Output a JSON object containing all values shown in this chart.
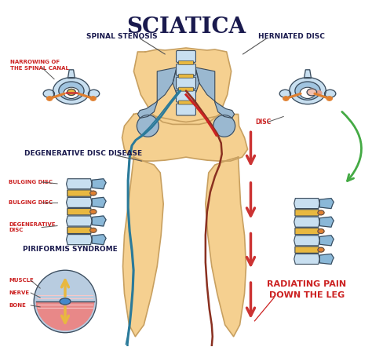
{
  "title": "SCIATICA",
  "title_color": "#1a1a4e",
  "title_fontsize": 20,
  "bg_color": "#ffffff",
  "labels": {
    "spinal_stenosis": "SPINAL STENOSIS",
    "narrowing": "NARROWING OF\nTHE SPINAL CANAL",
    "herniated_disc": "HERNIATED DISC",
    "disc": "DISC",
    "deg_disc": "DEGENERATIVE DISC DISEASE",
    "bulging1": "BULGING DISC",
    "bulging2": "BULGING DISC",
    "deg": "DEGENERATIVE\nDISC",
    "piriformis": "PIRIFORMIS SYNDROME",
    "muscle": "MUSCLE",
    "nerve": "NERVE",
    "bone": "BONE",
    "radiating": "RADIATING PAIN\nDOWN THE LEG"
  },
  "label_color_dark": "#1a1a4e",
  "label_color_red": "#cc2222",
  "body_fill": "#f5d090",
  "body_outline": "#c8a060",
  "spine_blue_light": "#c8dff0",
  "spine_blue": "#8ab8d8",
  "spine_dark": "#3a4a5a",
  "disc_yellow": "#e8b840",
  "disc_orange": "#e08030",
  "disc_red": "#cc4444",
  "nerve_teal": "#2a7a9a",
  "nerve_brown": "#8a3020",
  "nerve_red": "#cc3333",
  "arrow_red": "#cc3333",
  "arrow_red_fill": "#cc4444",
  "arrow_green": "#44aa44",
  "pelvis_blue": "#9ab8d0",
  "muscle_pink": "#e88888",
  "muscle_light": "#f0a0a0",
  "bone_blue": "#b8cce0"
}
